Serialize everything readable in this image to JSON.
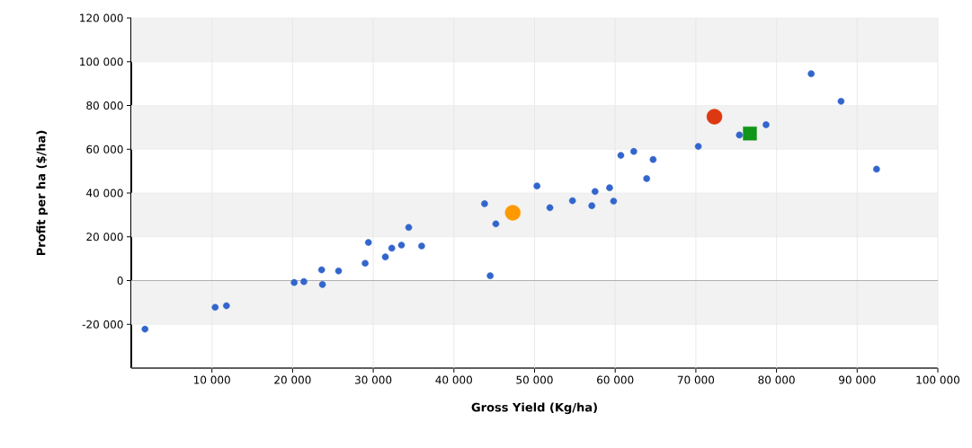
{
  "chart_data": {
    "type": "scatter",
    "xlabel": "Gross Yield (Kg/ha)",
    "ylabel": "Profit per ha ($/ha)",
    "xlim": [
      0,
      100000
    ],
    "ylim": [
      -40000,
      120000
    ],
    "xticks": [
      {
        "value": 10000,
        "label": "10 000"
      },
      {
        "value": 20000,
        "label": "20 000"
      },
      {
        "value": 30000,
        "label": "30 000"
      },
      {
        "value": 40000,
        "label": "40 000"
      },
      {
        "value": 50000,
        "label": "50 000"
      },
      {
        "value": 60000,
        "label": "60 000"
      },
      {
        "value": 70000,
        "label": "70 000"
      },
      {
        "value": 80000,
        "label": "80 000"
      },
      {
        "value": 90000,
        "label": "90 000"
      },
      {
        "value": 100000,
        "label": "100 000"
      }
    ],
    "yticks": [
      {
        "value": -20000,
        "label": "-20 000"
      },
      0,
      {
        "value": 20000,
        "label": "20 000"
      },
      {
        "value": 40000,
        "label": "40 000"
      },
      {
        "value": 60000,
        "label": "60 000"
      },
      {
        "value": 80000,
        "label": "80 000"
      },
      {
        "value": 100000,
        "label": "100 000"
      },
      {
        "value": 120000,
        "label": "120 000"
      }
    ],
    "grid": true,
    "ref_lines": [
      {
        "axis": "y",
        "value": 0,
        "color": "#b0b0b0"
      }
    ],
    "series": [
      {
        "color": "#3366cc",
        "marker": "circle",
        "x": [
          1700,
          10400,
          11800,
          20200,
          21400,
          23600,
          23700,
          25700,
          29000,
          29400,
          31500,
          32300,
          33500,
          34400,
          36000,
          43800,
          45200,
          44500,
          50300,
          51900,
          54700,
          57100,
          57500,
          59300,
          59800,
          60700,
          62300,
          63900,
          64700,
          70300,
          75400,
          78700,
          84300,
          88000,
          92400
        ],
        "values": [
          -22200,
          -12200,
          -11500,
          -900,
          -500,
          4900,
          -1800,
          4400,
          7900,
          17400,
          10800,
          14800,
          16200,
          24300,
          15800,
          35100,
          25900,
          2200,
          43200,
          33300,
          36500,
          34200,
          40700,
          42400,
          36300,
          57200,
          59000,
          46600,
          55300,
          61300,
          66500,
          71200,
          94500,
          81900,
          50900
        ]
      },
      {
        "color": "#ff9900",
        "marker": "circle",
        "x": [
          47300
        ],
        "values": [
          31000
        ]
      },
      {
        "color": "#dc3912",
        "marker": "circle",
        "x": [
          72300
        ],
        "values": [
          74900
        ]
      },
      {
        "color": "#109618",
        "marker": "square",
        "x": [
          76700
        ],
        "values": [
          67200
        ]
      }
    ]
  }
}
